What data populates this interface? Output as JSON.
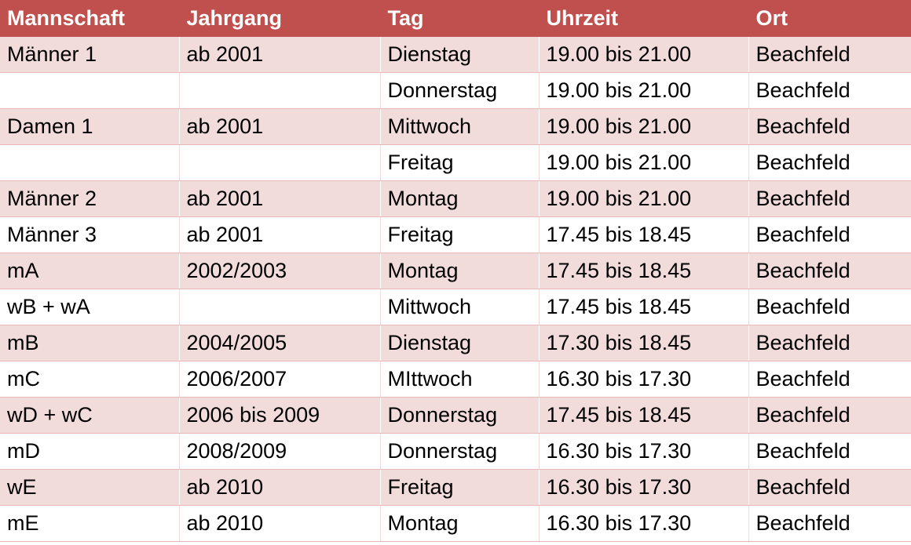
{
  "table": {
    "header": [
      "Mannschaft",
      "Jahrgang",
      "Tag",
      "Uhrzeit",
      "Ort"
    ],
    "rows": [
      [
        "Männer 1",
        "ab 2001",
        "Dienstag",
        "19.00 bis 21.00",
        "Beachfeld"
      ],
      [
        null,
        null,
        "Donnerstag",
        "19.00 bis 21.00",
        "Beachfeld"
      ],
      [
        "Damen 1",
        "ab 2001",
        "Mittwoch",
        "19.00 bis 21.00",
        "Beachfeld"
      ],
      [
        null,
        null,
        "Freitag",
        "19.00 bis 21.00",
        "Beachfeld"
      ],
      [
        "Männer 2",
        "ab 2001",
        "Montag",
        "19.00 bis 21.00",
        "Beachfeld"
      ],
      [
        "Männer 3",
        "ab 2001",
        "Freitag",
        "17.45 bis 18.45",
        "Beachfeld"
      ],
      [
        "mA",
        "2002/2003",
        "Montag",
        "17.45 bis 18.45",
        "Beachfeld"
      ],
      [
        "wB + wA",
        null,
        "Mittwoch",
        "17.45 bis 18.45",
        "Beachfeld"
      ],
      [
        "mB",
        "2004/2005",
        "Dienstag",
        "17.30 bis 18.45",
        "Beachfeld"
      ],
      [
        "mC",
        "2006/2007",
        "MIttwoch",
        "16.30 bis 17.30",
        "Beachfeld"
      ],
      [
        "wD + wC",
        "2006 bis 2009",
        "Donnerstag",
        "17.45 bis 18.45",
        "Beachfeld"
      ],
      [
        "mD",
        "2008/2009",
        "Donnerstag",
        "16.30 bis 17.30",
        "Beachfeld"
      ],
      [
        "wE",
        "ab 2010",
        "Freitag",
        "16.30 bis 17.30",
        "Beachfeld"
      ],
      [
        "mE",
        "ab 2010",
        "Montag",
        "16.30 bis 17.30",
        "Beachfeld"
      ]
    ]
  }
}
